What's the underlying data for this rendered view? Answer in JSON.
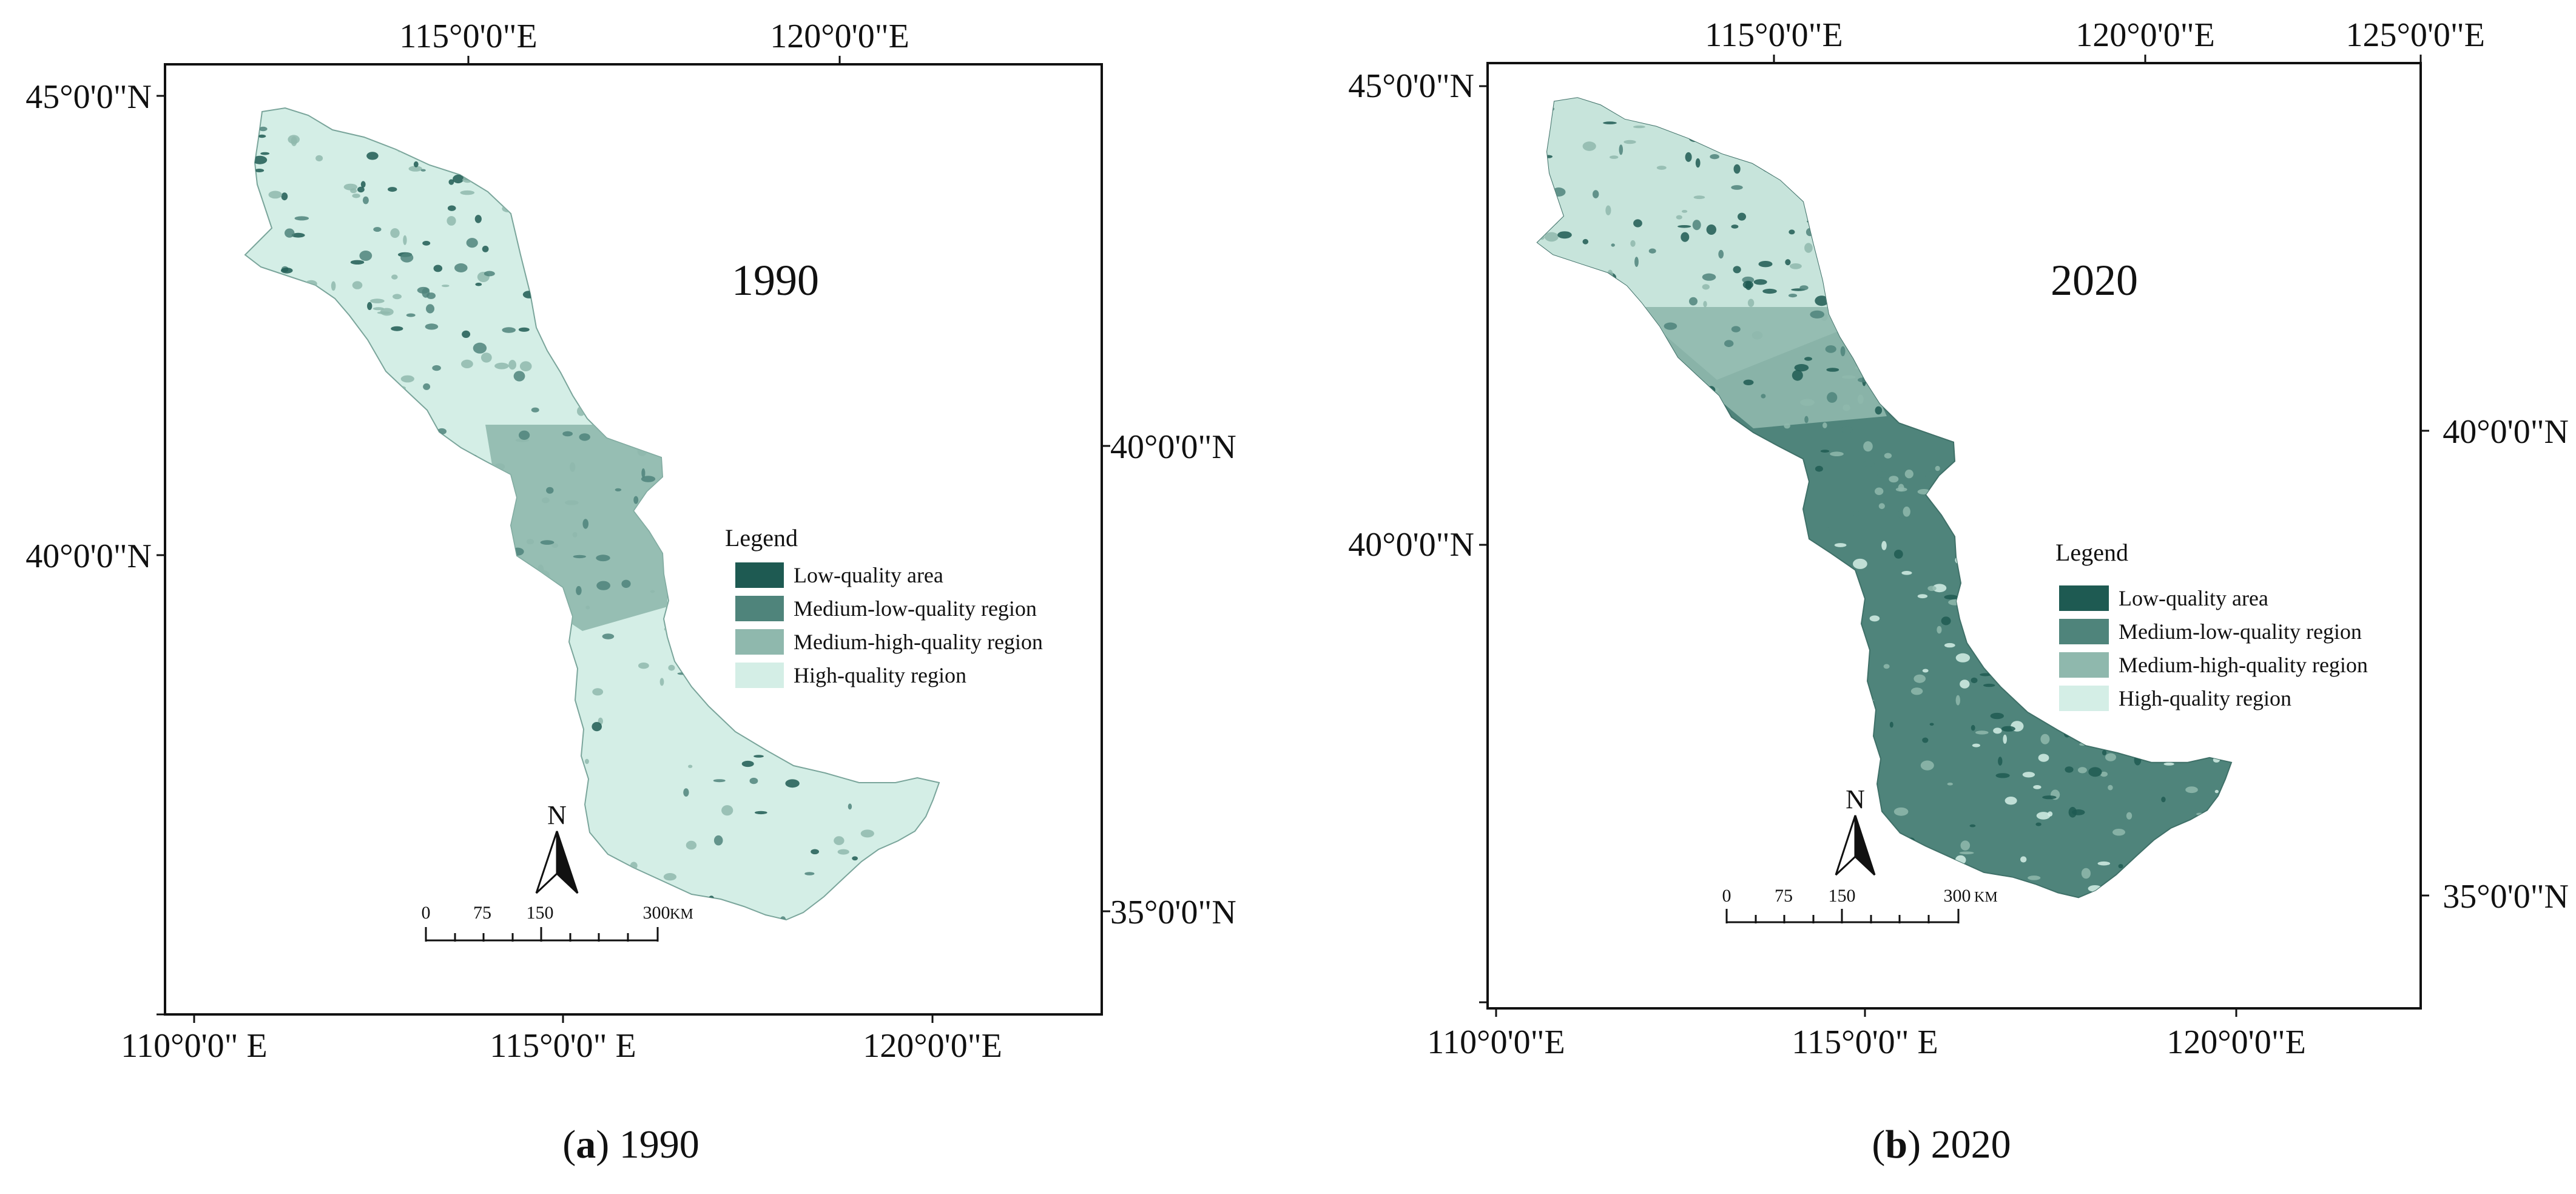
{
  "colors": {
    "low": "#1e5a52",
    "medium_low": "#4f847b",
    "medium_high": "#8fb8ad",
    "high": "#d4eee6",
    "frame": "#111111"
  },
  "panels": [
    {
      "id": "a",
      "year_label": "1990",
      "caption_letter": "a",
      "caption_text": " 1990",
      "top_ticks": [
        "115°0'0\"E",
        "120°0'0\"E"
      ],
      "bottom_ticks": [
        "110°0'0\" E",
        "115°0'0\" E",
        "120°0'0\"E"
      ],
      "left_ticks": [
        "45°0'0\"N",
        "40°0'0\"N"
      ],
      "right_ticks": [
        "40°0'0\"N",
        "35°0'0\"N"
      ],
      "dominant_class": "high",
      "legend": {
        "title": "Legend",
        "items": [
          "Low-quality area",
          "Medium-low-quality region",
          "Medium-high-quality region",
          "High-quality region"
        ]
      },
      "north_label": "N",
      "scale": {
        "labels": [
          "0",
          "75",
          "150",
          "300"
        ],
        "unit": "KM"
      }
    },
    {
      "id": "b",
      "year_label": "2020",
      "caption_letter": "b",
      "caption_text": " 2020",
      "top_ticks": [
        "115°0'0\"E",
        "120°0'0\"E",
        "125°0'0\"E"
      ],
      "bottom_ticks": [
        "110°0'0\"E",
        "115°0'0\" E",
        "120°0'0\"E"
      ],
      "left_ticks": [
        "45°0'0\"N",
        "40°0'0\"N"
      ],
      "right_ticks": [
        "40°0'0\"N",
        "35°0'0\"N"
      ],
      "dominant_class": "medium_low",
      "legend": {
        "title": "Legend",
        "items": [
          "Low-quality area",
          "Medium-low-quality region",
          "Medium-high-quality region",
          "High-quality region"
        ]
      },
      "north_label": "N",
      "scale": {
        "labels": [
          "0",
          "75",
          "150",
          "300"
        ],
        "unit": "KM"
      }
    }
  ]
}
